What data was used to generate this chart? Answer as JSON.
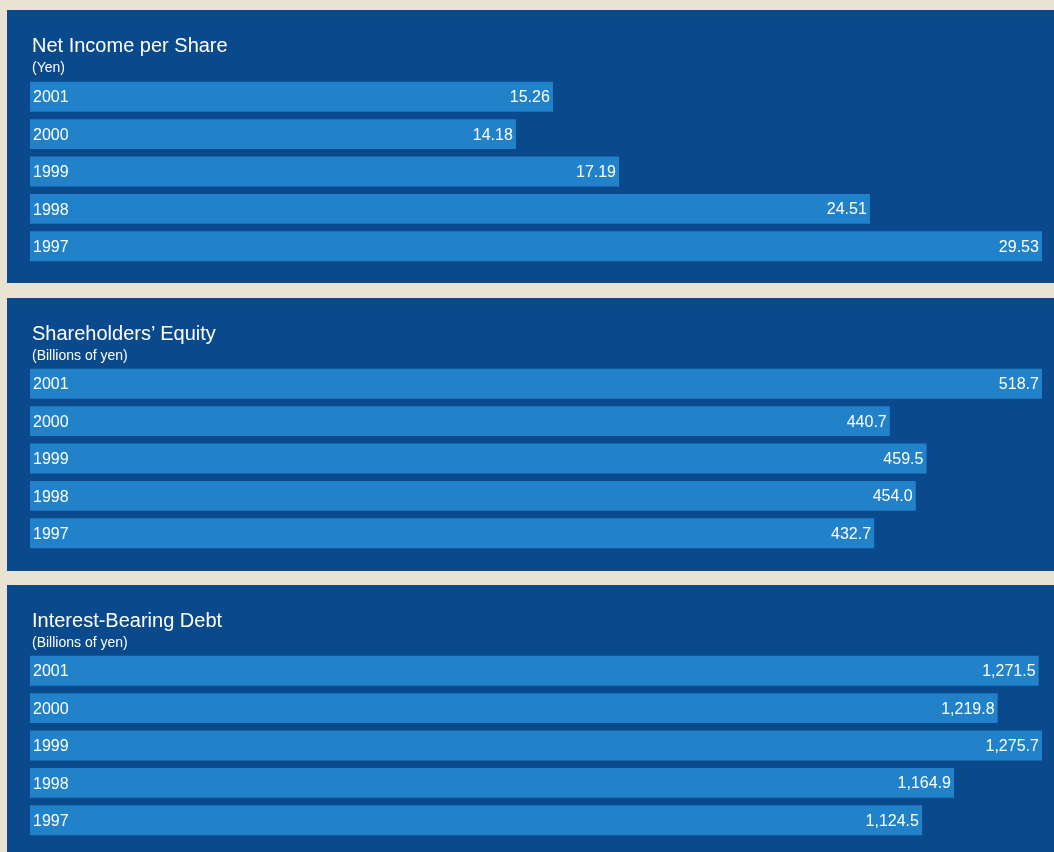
{
  "chart_data": [
    {
      "type": "bar",
      "orientation": "horizontal",
      "title": "Net Income per Share",
      "subtitle": "(Yen)",
      "categories": [
        "2001",
        "2000",
        "1999",
        "1998",
        "1997"
      ],
      "values": [
        15.26,
        14.18,
        17.19,
        24.51,
        29.53
      ],
      "value_labels": [
        "15.26",
        "14.18",
        "17.19",
        "24.51",
        "29.53"
      ],
      "color": "#2182c9",
      "tick_labels": "y"
    },
    {
      "type": "bar",
      "orientation": "horizontal",
      "title": "Shareholders’ Equity",
      "subtitle": "(Billions of yen)",
      "categories": [
        "2001",
        "2000",
        "1999",
        "1998",
        "1997"
      ],
      "values": [
        518.7,
        440.7,
        459.5,
        454.0,
        432.7
      ],
      "value_labels": [
        "518.7",
        "440.7",
        "459.5",
        "454.0",
        "432.7"
      ],
      "color": "#2182c9",
      "tick_labels": "y"
    },
    {
      "type": "bar",
      "orientation": "horizontal",
      "title": "Interest-Bearing Debt",
      "subtitle": "(Billions of yen)",
      "categories": [
        "2001",
        "2000",
        "1999",
        "1998",
        "1997"
      ],
      "values": [
        1271.5,
        1219.8,
        1275.7,
        1164.9,
        1124.5
      ],
      "value_labels": [
        "1,271.5",
        "1,219.8",
        "1,275.7",
        "1,164.9",
        "1,124.5"
      ],
      "color": "#2182c9",
      "tick_labels": "y"
    }
  ]
}
